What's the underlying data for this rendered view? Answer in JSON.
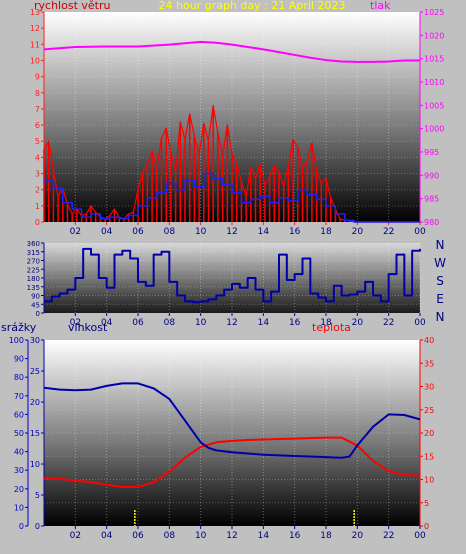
{
  "colors": {
    "background": "#c0c0c0",
    "wind": "#ff0000",
    "gust": "#2020ff",
    "pressure": "#ff00ff",
    "direction": "#0000aa",
    "humidity": "#0000aa",
    "temperature": "#ff0000",
    "rain": "#0000cc",
    "title": "#ffff00",
    "tick_text": "#000080",
    "compass_text": "#000080",
    "marker": "#ffff00"
  },
  "chart_data": [
    {
      "id": "wind-pressure",
      "type": "line",
      "title": "24 hour graph day : 21 April 2023",
      "left_label": "rychlost větru",
      "right_label": "tlak",
      "x_ticks": [
        "02",
        "04",
        "06",
        "08",
        "10",
        "12",
        "14",
        "16",
        "18",
        "20",
        "22",
        "00"
      ],
      "left_axis": {
        "min": 0,
        "max": 13,
        "ticks": [
          "0",
          "1",
          "2",
          "3",
          "4",
          "5",
          "6",
          "7",
          "8",
          "9",
          "10",
          "11",
          "12",
          "13"
        ]
      },
      "right_axis": {
        "min": 980,
        "max": 1025,
        "ticks": [
          "980",
          "985",
          "990",
          "995",
          "1000",
          "1005",
          "1010",
          "1015",
          "1020",
          "1025"
        ]
      },
      "series": [
        {
          "role": "wind-speed",
          "x": [
            0.0,
            0.3,
            0.6,
            0.9,
            1.2,
            1.5,
            1.8,
            2.1,
            2.4,
            2.7,
            3.0,
            3.3,
            3.6,
            3.9,
            4.2,
            4.5,
            4.8,
            5.1,
            5.4,
            5.7,
            6.0,
            6.3,
            6.6,
            6.9,
            7.2,
            7.5,
            7.8,
            8.1,
            8.4,
            8.7,
            9.0,
            9.3,
            9.6,
            9.9,
            10.2,
            10.5,
            10.8,
            11.1,
            11.4,
            11.7,
            12.0,
            12.3,
            12.6,
            12.9,
            13.2,
            13.5,
            13.8,
            14.1,
            14.4,
            14.7,
            15.0,
            15.3,
            15.6,
            15.9,
            16.2,
            16.5,
            16.8,
            17.1,
            17.4,
            17.7,
            18.0,
            18.3,
            18.6,
            18.9,
            19.2,
            19.5,
            19.8,
            20.1,
            20.4,
            20.7,
            21.0,
            21.3,
            21.6,
            21.9,
            22.2,
            22.5,
            22.8,
            23.1,
            23.4,
            23.7,
            24.0
          ],
          "y": [
            4.5,
            5.0,
            3.2,
            1.6,
            2.1,
            1.1,
            0.5,
            0.8,
            0.4,
            0.5,
            1.0,
            0.6,
            0.3,
            0.2,
            0.4,
            0.8,
            0.3,
            0.2,
            0.5,
            0.6,
            2.0,
            3.1,
            3.6,
            4.4,
            3.3,
            5.2,
            5.8,
            4.3,
            3.1,
            6.2,
            5.1,
            6.7,
            5.3,
            4.2,
            6.1,
            5.0,
            7.2,
            5.5,
            4.1,
            6.0,
            4.2,
            3.6,
            2.5,
            1.6,
            3.4,
            2.7,
            3.6,
            2.3,
            2.8,
            3.5,
            3.1,
            2.2,
            3.5,
            5.1,
            4.6,
            3.4,
            3.8,
            4.9,
            3.2,
            2.4,
            2.7,
            1.5,
            0.8,
            0.2,
            0.1,
            0.1,
            0.0,
            0.0,
            0.0,
            0.0,
            0.0,
            0.0,
            0.0,
            0.0,
            0.0,
            0.0,
            0.0,
            0.0,
            0.0,
            0.0,
            0.0
          ]
        },
        {
          "role": "wind-gust",
          "x": [
            0.0,
            0.6,
            1.2,
            1.8,
            2.4,
            3.0,
            3.6,
            4.2,
            4.8,
            5.4,
            6.0,
            6.6,
            7.2,
            7.8,
            8.4,
            9.0,
            9.6,
            10.2,
            10.8,
            11.4,
            12.0,
            12.6,
            13.2,
            13.8,
            14.4,
            15.0,
            15.6,
            16.2,
            16.8,
            17.4,
            18.0,
            18.6,
            19.2,
            19.8,
            20.4,
            21.0,
            21.6,
            22.2,
            22.8,
            23.4,
            24.0
          ],
          "y": [
            2.6,
            2.1,
            1.2,
            0.8,
            0.3,
            0.5,
            0.2,
            0.3,
            0.2,
            0.4,
            1.0,
            1.5,
            1.8,
            2.4,
            2.0,
            2.6,
            2.2,
            3.0,
            2.7,
            2.3,
            1.8,
            1.2,
            1.4,
            1.6,
            1.2,
            1.5,
            1.3,
            2.0,
            1.7,
            1.4,
            1.0,
            0.5,
            0.1,
            0.0,
            0.0,
            0.0,
            0.0,
            0.0,
            0.0,
            0.0,
            0.0
          ]
        },
        {
          "role": "pressure",
          "axis": "right",
          "x": [
            0,
            2,
            4,
            6,
            8,
            9,
            10,
            11,
            12,
            13,
            14,
            15,
            16,
            17,
            18,
            19,
            20,
            21,
            22,
            23,
            24
          ],
          "y": [
            1017.0,
            1017.5,
            1017.6,
            1017.6,
            1018.0,
            1018.3,
            1018.6,
            1018.4,
            1018.0,
            1017.5,
            1017.0,
            1016.4,
            1015.8,
            1015.2,
            1014.7,
            1014.4,
            1014.3,
            1014.3,
            1014.4,
            1014.6,
            1014.6
          ]
        }
      ]
    },
    {
      "id": "wind-direction",
      "type": "line",
      "x_ticks": [
        "02",
        "04",
        "06",
        "08",
        "10",
        "12",
        "14",
        "16",
        "18",
        "20",
        "22",
        "00"
      ],
      "left_axis": {
        "min": 0,
        "max": 360,
        "ticks": [
          "0",
          "45",
          "90",
          "135",
          "180",
          "225",
          "270",
          "315",
          "360"
        ]
      },
      "compass": [
        "N",
        "W",
        "S",
        "E",
        "N"
      ],
      "series": [
        {
          "role": "wind-direction",
          "x": [
            0.0,
            0.5,
            1.0,
            1.5,
            2.0,
            2.5,
            3.0,
            3.5,
            4.0,
            4.5,
            5.0,
            5.5,
            6.0,
            6.5,
            7.0,
            7.5,
            8.0,
            8.5,
            9.0,
            9.5,
            10.0,
            10.5,
            11.0,
            11.5,
            12.0,
            12.5,
            13.0,
            13.5,
            14.0,
            14.5,
            15.0,
            15.5,
            16.0,
            16.5,
            17.0,
            17.5,
            18.0,
            18.5,
            19.0,
            19.5,
            20.0,
            20.5,
            21.0,
            21.5,
            22.0,
            22.5,
            23.0,
            23.5,
            24.0
          ],
          "y": [
            60,
            85,
            100,
            120,
            180,
            330,
            300,
            180,
            130,
            300,
            320,
            280,
            160,
            140,
            300,
            315,
            160,
            90,
            60,
            55,
            60,
            70,
            90,
            120,
            150,
            130,
            180,
            120,
            60,
            110,
            300,
            170,
            200,
            280,
            100,
            80,
            60,
            140,
            90,
            95,
            110,
            160,
            90,
            60,
            200,
            300,
            90,
            320,
            330
          ]
        }
      ]
    },
    {
      "id": "humidity-temperature",
      "type": "line",
      "rain_label": "srážky",
      "left_label": "vlhkost",
      "right_label": "teplota",
      "x_ticks": [
        "02",
        "04",
        "06",
        "08",
        "10",
        "12",
        "14",
        "16",
        "18",
        "20",
        "22",
        "00"
      ],
      "rain_axis": {
        "min": 0,
        "max": 100,
        "ticks": [
          "0",
          "10",
          "20",
          "30",
          "40",
          "50",
          "60",
          "70",
          "80",
          "90",
          "100"
        ]
      },
      "left_axis": {
        "min": 0,
        "max": 30,
        "ticks": [
          "0",
          "5",
          "10",
          "15",
          "20",
          "25",
          "30"
        ]
      },
      "right_axis": {
        "min": 0,
        "max": 40,
        "ticks": [
          "0",
          "5",
          "10",
          "15",
          "20",
          "25",
          "30",
          "35",
          "40"
        ]
      },
      "series": [
        {
          "role": "humidity",
          "axis": "left",
          "x": [
            0,
            1,
            2,
            3,
            4,
            5,
            6,
            7,
            8,
            9,
            10,
            10.5,
            11,
            12,
            13,
            14,
            15,
            16,
            17,
            18,
            19,
            19.5,
            20,
            21,
            22,
            23,
            24
          ],
          "y": [
            22.3,
            22.0,
            21.9,
            22.0,
            22.6,
            23.0,
            23.0,
            22.2,
            20.5,
            17.0,
            13.5,
            12.6,
            12.2,
            11.9,
            11.7,
            11.5,
            11.4,
            11.3,
            11.2,
            11.1,
            11.0,
            11.2,
            13.0,
            16.0,
            18.0,
            17.9,
            17.2
          ]
        },
        {
          "role": "temperature",
          "axis": "right",
          "x": [
            0,
            1,
            2,
            3,
            4,
            5,
            6,
            7,
            8,
            9,
            10,
            11,
            12,
            13,
            14,
            15,
            16,
            17,
            18,
            19,
            20,
            21,
            22,
            23,
            24
          ],
          "y": [
            10.3,
            10.1,
            9.8,
            9.4,
            8.9,
            8.4,
            8.4,
            9.4,
            11.7,
            14.7,
            17.0,
            18.0,
            18.3,
            18.5,
            18.6,
            18.7,
            18.8,
            18.9,
            19.0,
            19.0,
            17.3,
            14.0,
            11.8,
            11.0,
            10.8
          ]
        },
        {
          "role": "rain-marker",
          "x": [
            5.8,
            19.8
          ]
        }
      ]
    }
  ]
}
